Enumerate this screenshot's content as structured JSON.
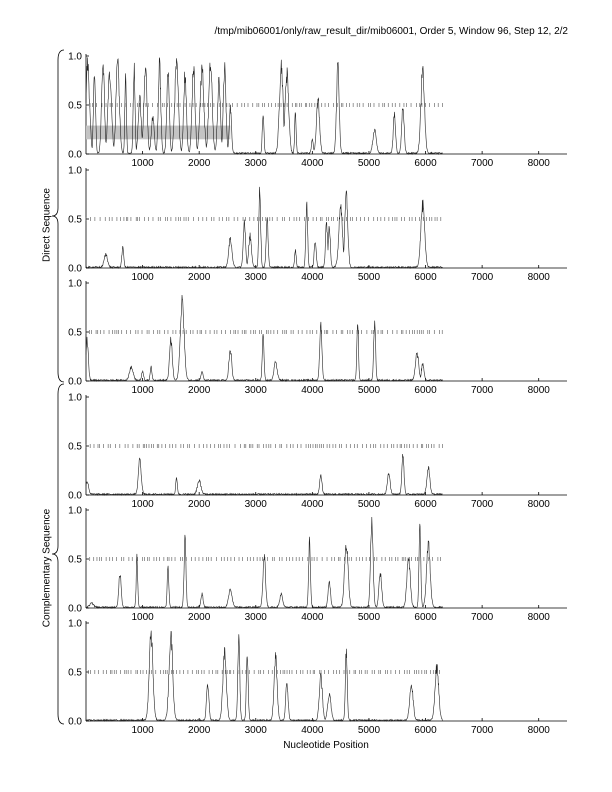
{
  "header": {
    "title": "/tmp/mib06001/only/raw_result_dir/mib06001, Order 5, Window 96, Step 12, 2/2"
  },
  "axes": {
    "xlabel": "Nucleotide Position"
  },
  "groups": [
    {
      "label": "Direct Sequence"
    },
    {
      "label": "Complementary Sequence"
    }
  ],
  "chart_data": {
    "type": "line",
    "title": "/tmp/mib06001/only/raw_result_dir/mib06001, Order 5, Window 96, Step 12, 2/2",
    "xlabel": "Nucleotide Position",
    "ylabel": "",
    "xlim": [
      0,
      8500
    ],
    "ylim": [
      0,
      1
    ],
    "xticks": [
      1000,
      2000,
      3000,
      4000,
      5000,
      6000,
      7000,
      8000
    ],
    "yticks": [
      0.0,
      0.5,
      1.0
    ],
    "ytick_labels": [
      "0.0",
      "0.5",
      "1.0"
    ],
    "grid": false,
    "group_labels": [
      "Direct Sequence",
      "Complementary Sequence"
    ],
    "panels": [
      {
        "strand": "direct",
        "frame": 1,
        "highlight_band": {
          "x": [
            0,
            2550
          ],
          "y": [
            0.15,
            0.29
          ]
        },
        "marks_at_half": {
          "x": [
            0,
            6300
          ]
        },
        "peaks": [
          [
            30,
            1.0
          ],
          [
            150,
            0.95
          ],
          [
            300,
            1.0
          ],
          [
            420,
            0.9
          ],
          [
            560,
            1.0
          ],
          [
            700,
            0.95
          ],
          [
            850,
            0.98
          ],
          [
            950,
            0.6
          ],
          [
            1050,
            0.99
          ],
          [
            1180,
            0.4
          ],
          [
            1300,
            0.98
          ],
          [
            1450,
            0.95
          ],
          [
            1600,
            0.99
          ],
          [
            1750,
            0.9
          ],
          [
            1900,
            0.98
          ],
          [
            2050,
            0.95
          ],
          [
            2200,
            0.99
          ],
          [
            2350,
            0.8
          ],
          [
            2450,
            0.95
          ],
          [
            2550,
            0.5
          ],
          [
            3130,
            0.45
          ],
          [
            3450,
            1.0
          ],
          [
            3550,
            0.9
          ],
          [
            3700,
            0.45
          ],
          [
            4000,
            0.15
          ],
          [
            4100,
            0.6
          ],
          [
            4450,
            1.0
          ],
          [
            5100,
            0.25
          ],
          [
            5450,
            0.45
          ],
          [
            5600,
            0.55
          ],
          [
            5950,
            0.92
          ]
        ]
      },
      {
        "strand": "direct",
        "frame": 2,
        "marks_at_half": {
          "x": [
            0,
            6300
          ]
        },
        "peaks": [
          [
            350,
            0.15
          ],
          [
            650,
            0.22
          ],
          [
            2550,
            0.32
          ],
          [
            2800,
            0.5
          ],
          [
            2900,
            0.35
          ],
          [
            3070,
            0.88
          ],
          [
            3200,
            0.55
          ],
          [
            3700,
            0.2
          ],
          [
            3900,
            0.72
          ],
          [
            4050,
            0.3
          ],
          [
            4250,
            0.5
          ],
          [
            4300,
            0.45
          ],
          [
            4500,
            0.65
          ],
          [
            4600,
            0.82
          ],
          [
            5950,
            0.7
          ]
        ]
      },
      {
        "strand": "direct",
        "frame": 3,
        "marks_at_half": {
          "x": [
            0,
            6300
          ]
        },
        "peaks": [
          [
            20,
            0.45
          ],
          [
            800,
            0.15
          ],
          [
            1000,
            0.1
          ],
          [
            1150,
            0.15
          ],
          [
            1500,
            0.45
          ],
          [
            1700,
            0.88
          ],
          [
            2050,
            0.1
          ],
          [
            2550,
            0.35
          ],
          [
            3130,
            0.5
          ],
          [
            3350,
            0.2
          ],
          [
            4150,
            0.6
          ],
          [
            4800,
            0.65
          ],
          [
            5100,
            0.65
          ],
          [
            5850,
            0.3
          ],
          [
            5950,
            0.18
          ]
        ]
      },
      {
        "strand": "complementary",
        "frame": 1,
        "marks_at_half": {
          "x": [
            0,
            6300
          ]
        },
        "peaks": [
          [
            20,
            0.15
          ],
          [
            950,
            0.38
          ],
          [
            1600,
            0.2
          ],
          [
            2000,
            0.15
          ],
          [
            4150,
            0.22
          ],
          [
            5350,
            0.25
          ],
          [
            5600,
            0.45
          ],
          [
            6050,
            0.3
          ]
        ]
      },
      {
        "strand": "complementary",
        "frame": 2,
        "marks_at_half": {
          "x": [
            0,
            6300
          ]
        },
        "peaks": [
          [
            100,
            0.05
          ],
          [
            600,
            0.38
          ],
          [
            900,
            0.55
          ],
          [
            1450,
            0.45
          ],
          [
            1750,
            0.75
          ],
          [
            2050,
            0.15
          ],
          [
            2550,
            0.2
          ],
          [
            3150,
            0.55
          ],
          [
            3450,
            0.15
          ],
          [
            3950,
            0.75
          ],
          [
            4300,
            0.3
          ],
          [
            4600,
            0.7
          ],
          [
            5050,
            0.95
          ],
          [
            5200,
            0.4
          ],
          [
            5700,
            0.55
          ],
          [
            5900,
            0.9
          ],
          [
            6050,
            0.7
          ]
        ]
      },
      {
        "strand": "complementary",
        "frame": 3,
        "marks_at_half": {
          "x": [
            0,
            6300
          ]
        },
        "peaks": [
          [
            1150,
            0.95
          ],
          [
            1500,
            0.95
          ],
          [
            2150,
            0.4
          ],
          [
            2450,
            0.75
          ],
          [
            2700,
            0.95
          ],
          [
            2850,
            0.7
          ],
          [
            3350,
            0.7
          ],
          [
            3550,
            0.4
          ],
          [
            4150,
            0.5
          ],
          [
            4300,
            0.3
          ],
          [
            4600,
            0.8
          ],
          [
            5750,
            0.4
          ],
          [
            6200,
            0.6
          ]
        ]
      }
    ]
  }
}
